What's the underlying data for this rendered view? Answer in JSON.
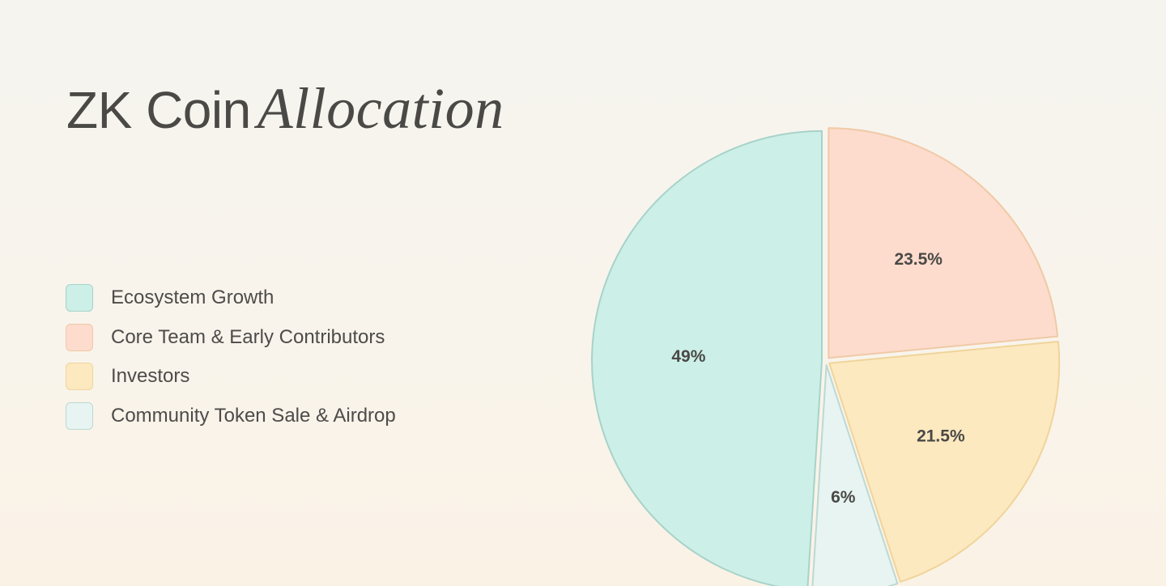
{
  "title": {
    "main": "ZK Coin",
    "accent": "Allocation"
  },
  "chart_data": {
    "type": "pie",
    "title": "ZK Coin Allocation",
    "categories": [
      "Ecosystem Growth",
      "Core Team & Early Contributors",
      "Investors",
      "Community Token Sale & Airdrop"
    ],
    "values": [
      49,
      23.5,
      21.5,
      6
    ],
    "labels": [
      "49%",
      "23.5%",
      "21.5%",
      "6%"
    ],
    "colors": {
      "fill": [
        "#ccefe7",
        "#fddccd",
        "#fde9c0",
        "#e7f4f1"
      ],
      "stroke": [
        "#a7d3c9",
        "#f0c9a6",
        "#f0d49a",
        "#bcd9d3"
      ]
    },
    "legend_position": "left",
    "start": "top, clockwise order: Core Team & Early Contributors, Investors, Community Token Sale & Airdrop, Ecosystem Growth",
    "exploded": true
  }
}
